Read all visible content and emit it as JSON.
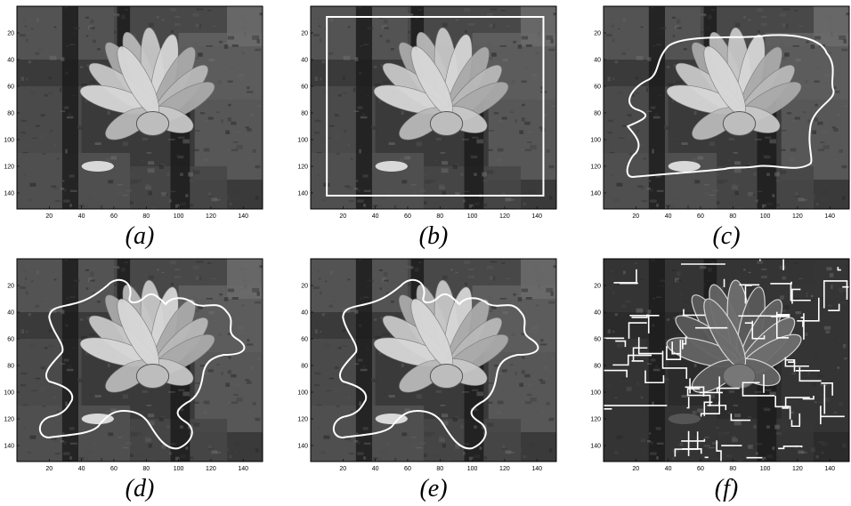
{
  "figure": {
    "panels": [
      {
        "id": "a",
        "caption": "(a)",
        "overlay": "none"
      },
      {
        "id": "b",
        "caption": "(b)",
        "overlay": "rectangle"
      },
      {
        "id": "c",
        "caption": "(c)",
        "overlay": "coarse-contour"
      },
      {
        "id": "d",
        "caption": "(d)",
        "overlay": "fine-contour"
      },
      {
        "id": "e",
        "caption": "(e)",
        "overlay": "fine-contour"
      },
      {
        "id": "f",
        "caption": "(f)",
        "overlay": "segmentation"
      }
    ],
    "x_ticks": [
      "20",
      "40",
      "60",
      "80",
      "100",
      "120",
      "140"
    ],
    "y_ticks": [
      "20",
      "40",
      "60",
      "80",
      "100",
      "120",
      "140"
    ],
    "colors": {
      "contour": "#ffffff",
      "axis": "#000000"
    }
  }
}
